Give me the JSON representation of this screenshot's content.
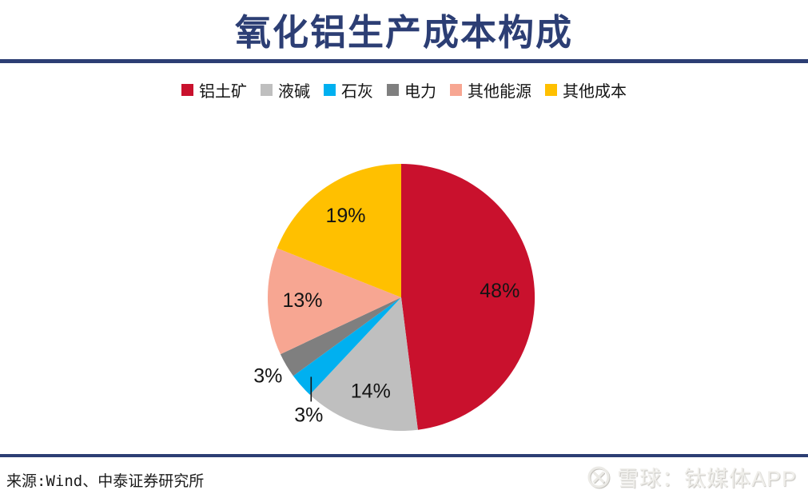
{
  "title": "氧化铝生产成本构成",
  "theme": {
    "accent_navy": "#2C3E74",
    "label_color": "#141414",
    "background": "#FFFFFF"
  },
  "chart_data": {
    "type": "pie",
    "title": "氧化铝生产成本构成",
    "legend_position": "top",
    "direction": "clockwise",
    "start_angle_deg": 0,
    "value_suffix": "%",
    "slices": [
      {
        "label": "铝土矿",
        "value": 48,
        "color": "#C9112D",
        "label_placement": "inside"
      },
      {
        "label": "液碱",
        "value": 14,
        "color": "#BFBFBF",
        "label_placement": "inside"
      },
      {
        "label": "石灰",
        "value": 3,
        "color": "#00B0F0",
        "label_placement": "outside-leader"
      },
      {
        "label": "电力",
        "value": 3,
        "color": "#7F7F7F",
        "label_placement": "outside"
      },
      {
        "label": "其他能源",
        "value": 13,
        "color": "#F7A692",
        "label_placement": "inside"
      },
      {
        "label": "其他成本",
        "value": 19,
        "color": "#FFC000",
        "label_placement": "inside"
      }
    ]
  },
  "footer": {
    "source": "来源:Wind、中泰证券研究所"
  },
  "watermark": {
    "logo": "snowball-logo",
    "text": "雪球：钛媒体APP"
  }
}
